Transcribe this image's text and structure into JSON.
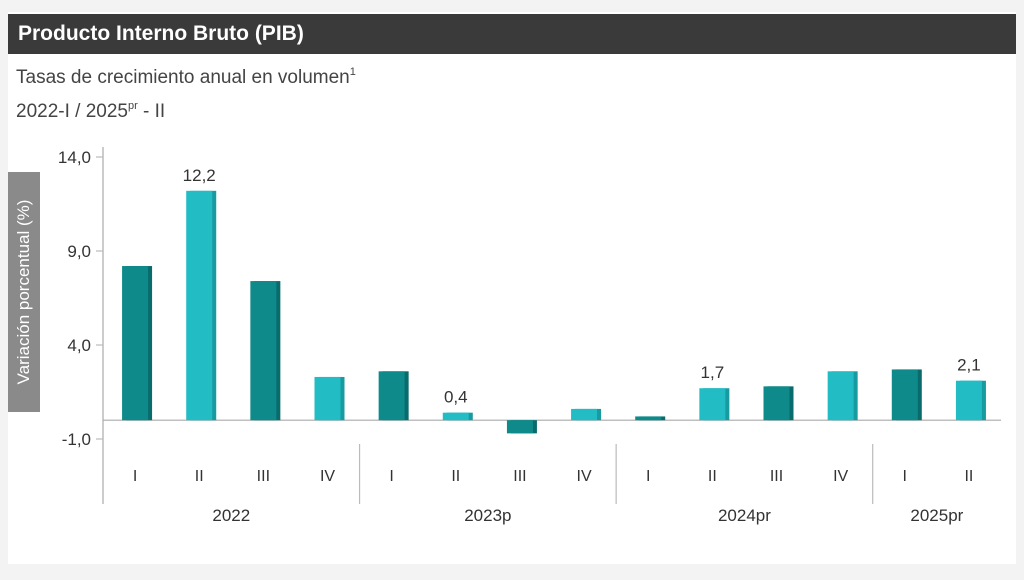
{
  "chart_data": {
    "type": "bar",
    "title": "Producto Interno Bruto (PIB)",
    "subtitle_line1": "Tasas de crecimiento anual en volumen",
    "subtitle_line1_sup": "1",
    "subtitle_line2_a": "2022-I / 2025",
    "subtitle_line2_sup": "pr",
    "subtitle_line2_b": " - II",
    "ylabel": "Variación porcentual (%)",
    "ylim": [
      -1.0,
      14.0
    ],
    "yticks": [
      "14,0",
      "9,0",
      "4,0",
      "-1,0"
    ],
    "ytick_values": [
      14.0,
      9.0,
      4.0,
      -1.0
    ],
    "categories": [
      "I",
      "II",
      "III",
      "IV",
      "I",
      "II",
      "III",
      "IV",
      "I",
      "II",
      "III",
      "IV",
      "I",
      "II"
    ],
    "groups": [
      {
        "label": "2022",
        "count": 4
      },
      {
        "label": "2023p",
        "count": 4
      },
      {
        "label": "2024pr",
        "count": 4
      },
      {
        "label": "2025pr",
        "count": 2
      }
    ],
    "values": [
      8.2,
      12.2,
      7.4,
      2.3,
      2.6,
      0.4,
      -0.7,
      0.6,
      0.2,
      1.7,
      1.8,
      2.6,
      2.7,
      2.1
    ],
    "data_labels": {
      "1": "12,2",
      "5": "0,4",
      "9": "1,7",
      "13": "2,1"
    },
    "colors": {
      "dark": "#0e8a8a",
      "light": "#22bcc4",
      "dark_side": "#0a6b6c",
      "light_side": "#179aa0"
    }
  }
}
